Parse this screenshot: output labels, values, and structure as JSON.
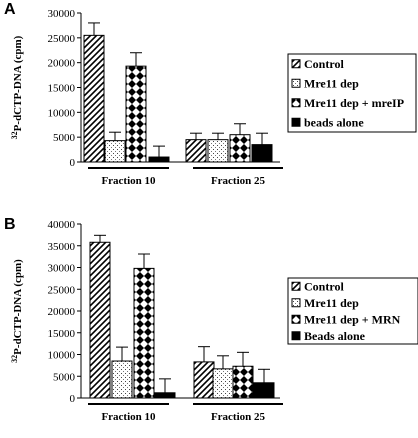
{
  "chart_data": [
    {
      "type": "bar",
      "panel": "A",
      "ylabel_sup": "32",
      "ylabel_rest": "P-dCTP-DNA (cpm)",
      "ylim": [
        0,
        30000
      ],
      "yticks": [
        "0",
        "5000",
        "10000",
        "15000",
        "20000",
        "25000",
        "30000"
      ],
      "groups": [
        "Fraction 10",
        "Fraction 25"
      ],
      "series": [
        {
          "name": "Control",
          "pattern": "diag",
          "values": [
            25500,
            4500
          ],
          "errors": [
            2500,
            1300
          ]
        },
        {
          "name": "Mre11 dep",
          "pattern": "dots",
          "values": [
            4300,
            4500
          ],
          "errors": [
            1700,
            1300
          ]
        },
        {
          "name": "Mre11 dep + mreIP",
          "pattern": "diamond",
          "values": [
            19300,
            5500
          ],
          "errors": [
            2700,
            2200
          ]
        },
        {
          "name": "beads alone",
          "pattern": "solid",
          "values": [
            1000,
            3500
          ],
          "errors": [
            2200,
            2300
          ]
        }
      ]
    },
    {
      "type": "bar",
      "panel": "B",
      "ylabel_sup": "32",
      "ylabel_rest": "P-dCTP-DNA (cpm)",
      "ylim": [
        0,
        40000
      ],
      "yticks": [
        "0",
        "5000",
        "10000",
        "15000",
        "20000",
        "25000",
        "30000",
        "35000",
        "40000"
      ],
      "groups": [
        "Fraction 10",
        "Fraction 25"
      ],
      "series": [
        {
          "name": "Control",
          "pattern": "diag",
          "values": [
            35800,
            8300
          ],
          "errors": [
            1600,
            3500
          ]
        },
        {
          "name": "Mre11 dep",
          "pattern": "dots",
          "values": [
            8500,
            6700
          ],
          "errors": [
            3200,
            3000
          ]
        },
        {
          "name": "Mre11 dep + MRN",
          "pattern": "diamond",
          "values": [
            29800,
            7300
          ],
          "errors": [
            3300,
            3200
          ]
        },
        {
          "name": "Beads alone",
          "pattern": "solid",
          "values": [
            1200,
            3500
          ],
          "errors": [
            3200,
            3100
          ]
        }
      ]
    }
  ]
}
